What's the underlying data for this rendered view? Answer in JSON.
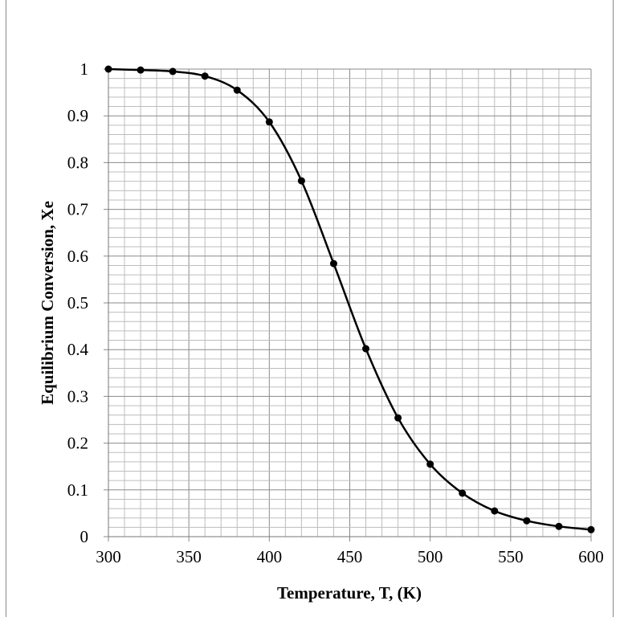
{
  "chart_data": {
    "type": "line",
    "xlabel": "Temperature, T, (K)",
    "ylabel": "Equilibrium Conversion, Xe",
    "xlim": [
      300,
      600
    ],
    "ylim": [
      0,
      1
    ],
    "x_ticks": [
      "300",
      "350",
      "400",
      "450",
      "500",
      "550",
      "600"
    ],
    "y_ticks": [
      "0",
      "0.1",
      "0.2",
      "0.3",
      "0.4",
      "0.5",
      "0.6",
      "0.7",
      "0.8",
      "0.9",
      "1"
    ],
    "grid": true,
    "minor_grid": {
      "x_step": 10,
      "y_step": 0.02
    },
    "markers": "circle",
    "line_style": "smooth",
    "color": "#000000",
    "x": [
      300,
      320,
      340,
      360,
      380,
      400,
      420,
      440,
      460,
      480,
      500,
      520,
      540,
      560,
      580,
      600
    ],
    "y": [
      1.0,
      0.998,
      0.995,
      0.985,
      0.955,
      0.887,
      0.761,
      0.584,
      0.402,
      0.254,
      0.155,
      0.093,
      0.055,
      0.034,
      0.022,
      0.015
    ]
  }
}
